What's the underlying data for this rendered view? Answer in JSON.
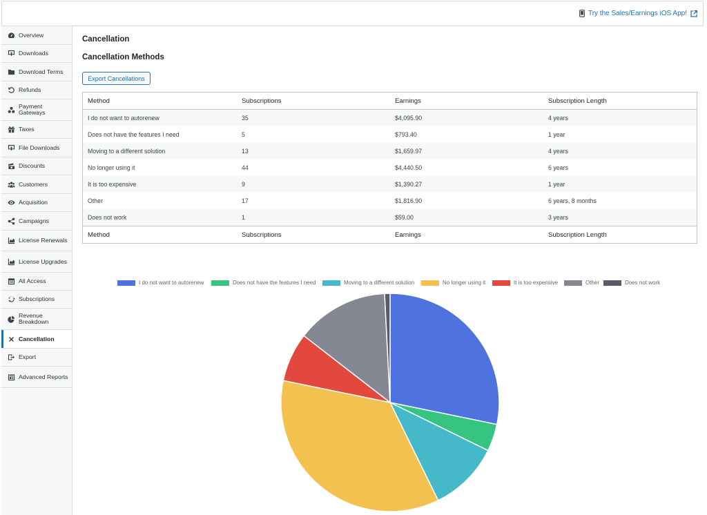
{
  "topbar": {
    "ios_link": "Try the Sales/Earnings iOS App!",
    "phone_icon": "phone-icon",
    "external_icon": "external-link-icon"
  },
  "sidebar": {
    "items": [
      {
        "label": "Overview",
        "icon": "dashboard-icon"
      },
      {
        "label": "Downloads",
        "icon": "download-icon"
      },
      {
        "label": "Download Terms",
        "icon": "folder-icon"
      },
      {
        "label": "Refunds",
        "icon": "undo-icon"
      },
      {
        "label": "Payment Gateways",
        "icon": "groups-icon"
      },
      {
        "label": "Taxes",
        "icon": "gift-icon"
      },
      {
        "label": "File Downloads",
        "icon": "download-icon"
      },
      {
        "label": "Discounts",
        "icon": "money-icon"
      },
      {
        "label": "Customers",
        "icon": "users-icon"
      },
      {
        "label": "Acquisition",
        "icon": "visibility-icon"
      },
      {
        "label": "Campaigns",
        "icon": "share-icon"
      },
      {
        "label": "License Renewals",
        "icon": "area-chart-icon"
      },
      {
        "label": "License Upgrades",
        "icon": "area-chart-icon"
      },
      {
        "label": "All Access",
        "icon": "calendar-icon"
      },
      {
        "label": "Subscriptions",
        "icon": "update-icon"
      },
      {
        "label": "Revenue Breakdown",
        "icon": "pie-chart-icon"
      },
      {
        "label": "Cancellation",
        "icon": "close-icon"
      },
      {
        "label": "Export",
        "icon": "export-icon"
      },
      {
        "label": "Advanced Reports",
        "icon": "reports-icon"
      }
    ],
    "active": "Cancellation"
  },
  "main": {
    "title": "Cancellation",
    "subtitle": "Cancellation Methods",
    "export_button": "Export Cancellations",
    "table": {
      "headers": [
        "Method",
        "Subscriptions",
        "Earnings",
        "Subscription Length"
      ],
      "rows": [
        [
          "I do not want to autorenew",
          "35",
          "$4,095.90",
          "4 years"
        ],
        [
          "Does not have the features I need",
          "5",
          "$793.40",
          "1 year"
        ],
        [
          "Moving to a different solution",
          "13",
          "$1,659.97",
          "4 years"
        ],
        [
          "No longer using it",
          "44",
          "$4,440.50",
          "6 years"
        ],
        [
          "It is too expensive",
          "9",
          "$1,390.27",
          "1 year"
        ],
        [
          "Other",
          "17",
          "$1,816.90",
          "6 years, 8 months"
        ],
        [
          "Does not work",
          "1",
          "$59.00",
          "3 years"
        ]
      ]
    }
  },
  "chart_data": {
    "type": "pie",
    "categories": [
      "I do not want to autorenew",
      "Does not have the features I need",
      "Moving to a different solution",
      "No longer using it",
      "It is too expensive",
      "Other",
      "Does not work"
    ],
    "values": [
      35,
      5,
      13,
      44,
      9,
      17,
      1
    ],
    "colors": [
      "#4e73df",
      "#36c581",
      "#45b9c9",
      "#f3c150",
      "#e2483d",
      "#858792",
      "#5a5c69"
    ],
    "legend": "top"
  }
}
